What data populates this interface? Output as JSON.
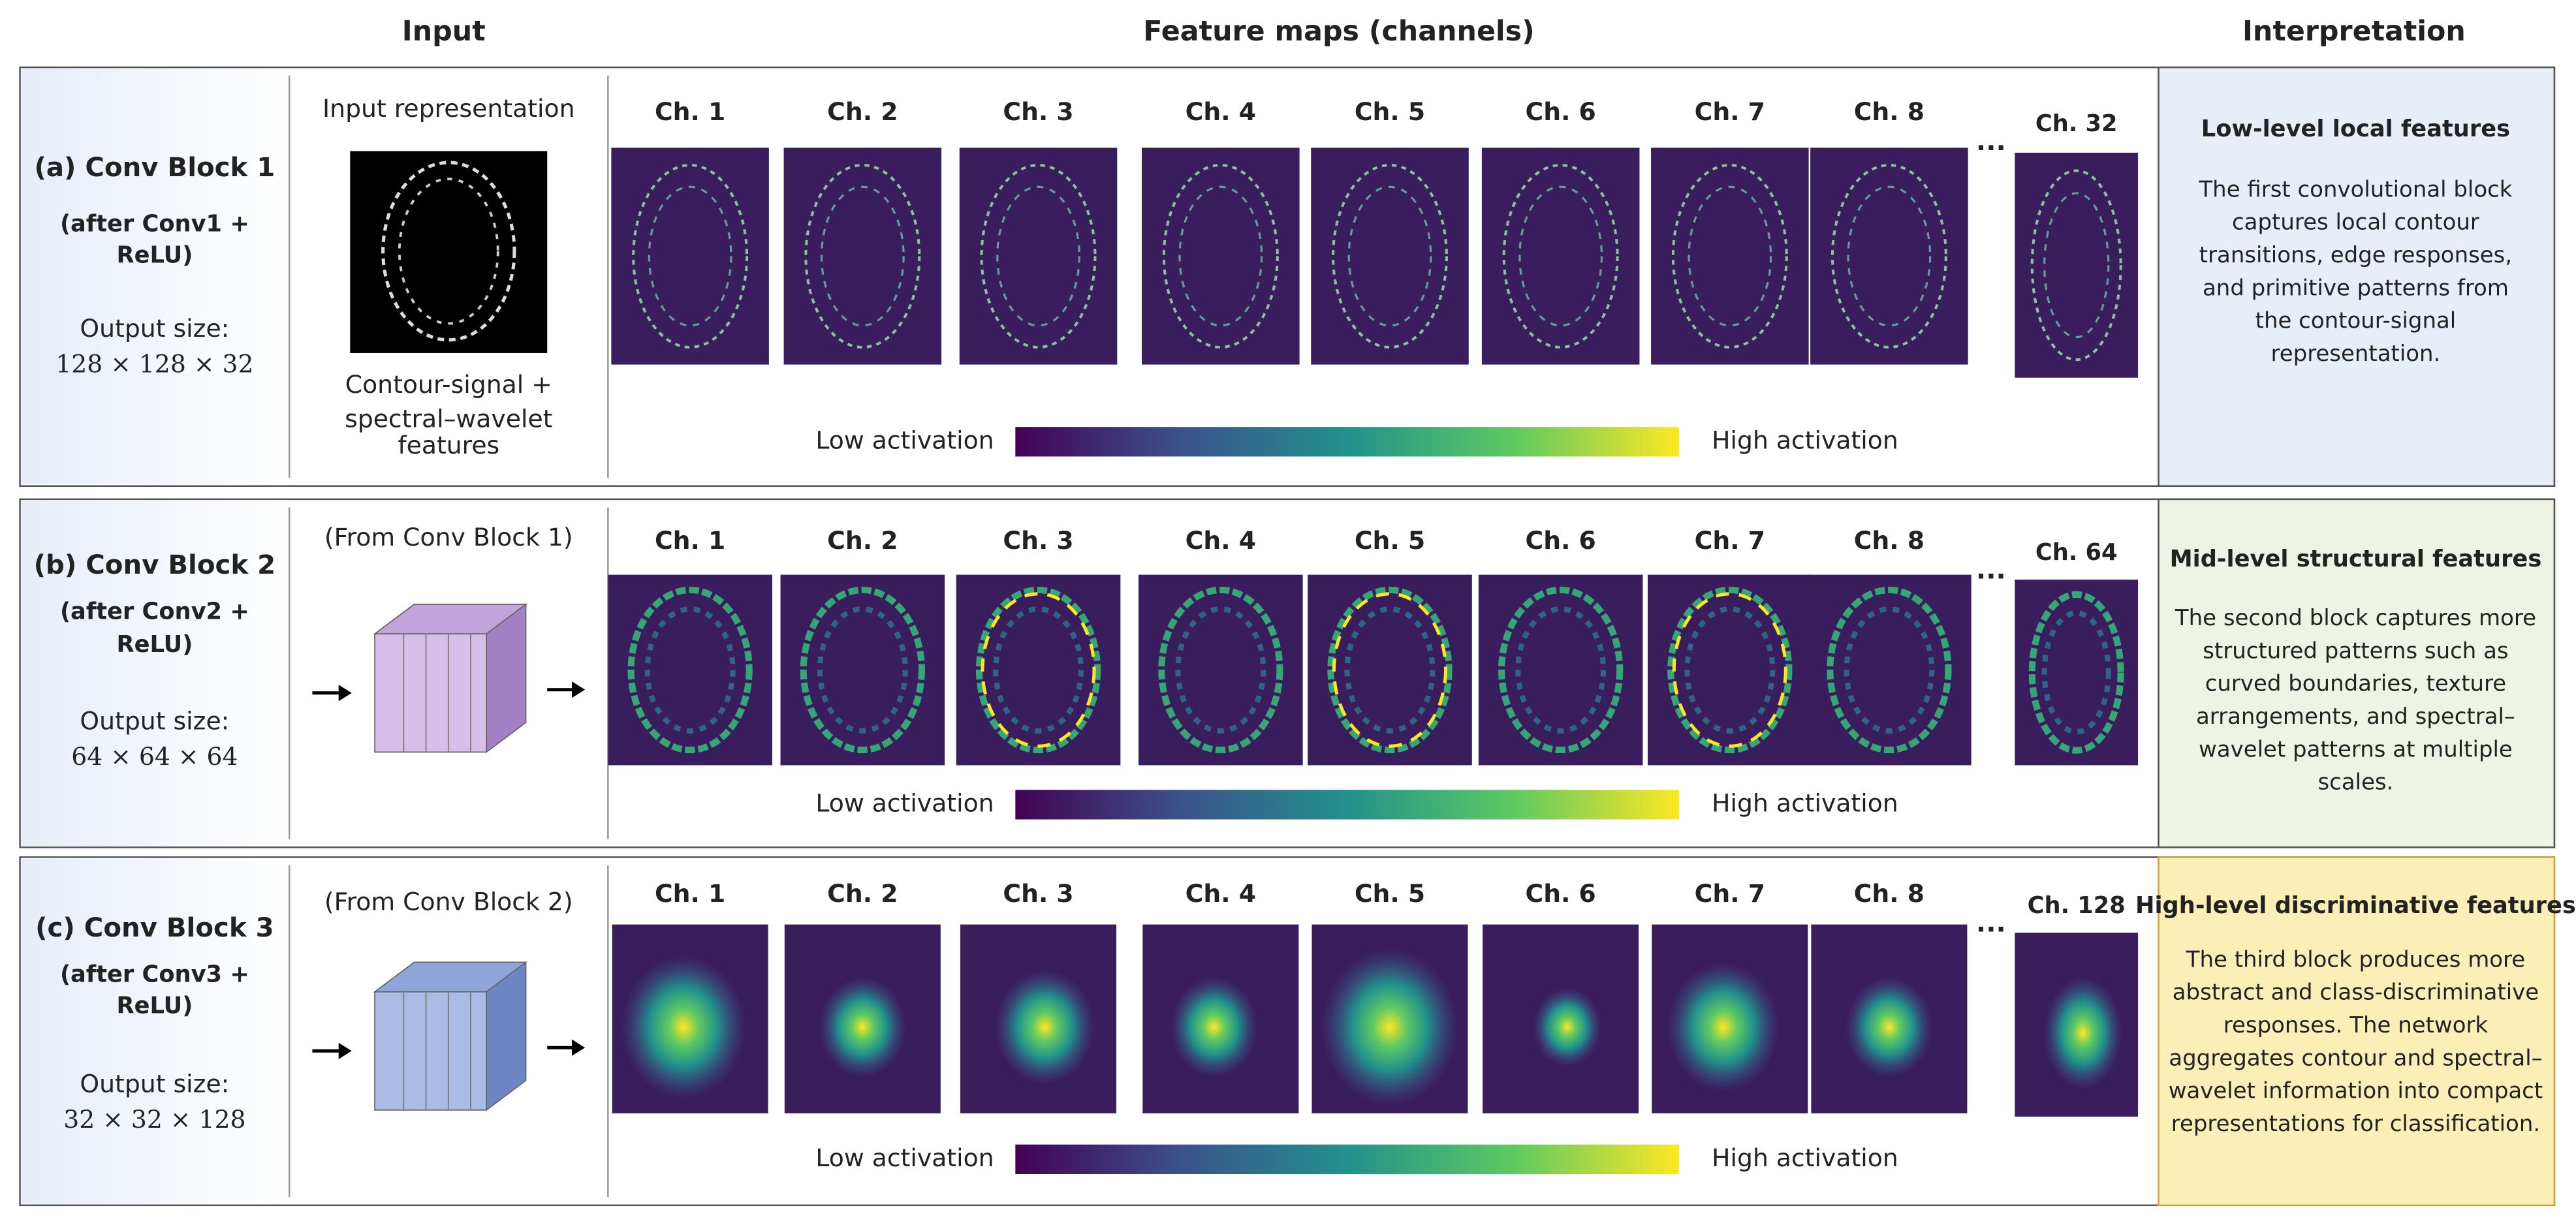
{
  "header": {
    "input": "Input",
    "feature_maps": "Feature maps (channels)",
    "interpretation": "Interpretation"
  },
  "rows": [
    {
      "block": "(a) Conv Block 1",
      "after": [
        "(after Conv1 +",
        "ReLU)"
      ],
      "output_label": "Output size:",
      "output_size": "128 × 128 × 32",
      "input_title": "Input representation",
      "input_caption": [
        "Contour-signal +",
        "spectral–wavelet",
        "features"
      ],
      "channels": [
        "Ch. 1",
        "Ch. 2",
        "Ch. 3",
        "Ch. 4",
        "Ch. 5",
        "Ch. 6",
        "Ch. 7",
        "Ch. 8"
      ],
      "ellipsis": "...",
      "last_channel": "Ch. 32",
      "low": "Low activation",
      "high": "High activation",
      "interp_title": "Low-level local features",
      "interp_text": [
        "The first convolutional block",
        "captures local contour",
        "transitions, edge responses,",
        "and primitive patterns from",
        "the contour-signal",
        "representation."
      ]
    },
    {
      "block": "(b) Conv Block 2",
      "after": [
        "(after Conv2 +",
        "ReLU)"
      ],
      "output_label": "Output size:",
      "output_size": "64 × 64 × 64",
      "input_title": "(From Conv Block 1)",
      "input_caption": [],
      "channels": [
        "Ch. 1",
        "Ch. 2",
        "Ch. 3",
        "Ch. 4",
        "Ch. 5",
        "Ch. 6",
        "Ch. 7",
        "Ch. 8"
      ],
      "ellipsis": "...",
      "last_channel": "Ch. 64",
      "low": "Low activation",
      "high": "High activation",
      "interp_title": "Mid-level structural features",
      "interp_text": [
        "The second block captures more",
        "structured patterns such as",
        "curved boundaries, texture",
        "arrangements, and spectral–",
        "wavelet patterns at multiple",
        "scales."
      ]
    },
    {
      "block": "(c) Conv Block 3",
      "after": [
        "(after Conv3 +",
        "ReLU)"
      ],
      "output_label": "Output size:",
      "output_size": "32 × 32 × 128",
      "input_title": "(From Conv Block 2)",
      "input_caption": [],
      "channels": [
        "Ch. 1",
        "Ch. 2",
        "Ch. 3",
        "Ch. 4",
        "Ch. 5",
        "Ch. 6",
        "Ch. 7",
        "Ch. 8"
      ],
      "ellipsis": "...",
      "last_channel": "Ch. 128",
      "low": "Low activation",
      "high": "High activation",
      "interp_title": "High-level discriminative features",
      "interp_text": [
        "The third block produces more",
        "abstract and class-discriminative",
        "responses. The network",
        "aggregates contour and spectral–",
        "wavelet information into compact",
        "representations for classification."
      ]
    }
  ]
}
